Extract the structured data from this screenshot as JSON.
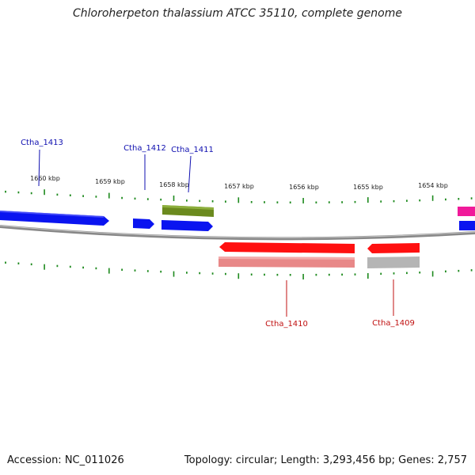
{
  "title": "Chloroherpeton thalassium ATCC 35110, complete genome",
  "footer": {
    "accession": "Accession: NC_011026",
    "summary": "Topology: circular; Length: 3,293,456 bp; Genes: 2,757"
  },
  "colors": {
    "forward_gene": "#0a14f0",
    "reverse_gene": "#ff1010",
    "green_feature": "#6b8a1e",
    "pink_feature": "#f01a9a",
    "rna_feature": "#e88888",
    "grey_feature": "#b5b5b5",
    "tick": "#1e8a1e",
    "backbone": "#888888",
    "forward_label": "#1010b0",
    "reverse_label": "#c01010"
  },
  "scale": {
    "ticks": [
      "1660 kbp",
      "1659 kbp",
      "1658 kbp",
      "1657 kbp",
      "1656 kbp",
      "1655 kbp",
      "1654 kbp"
    ]
  },
  "gene_labels": {
    "forward": [
      "Ctha_1413",
      "Ctha_1412",
      "Ctha_1411"
    ],
    "reverse": [
      "Ctha_1410",
      "Ctha_1409"
    ]
  }
}
